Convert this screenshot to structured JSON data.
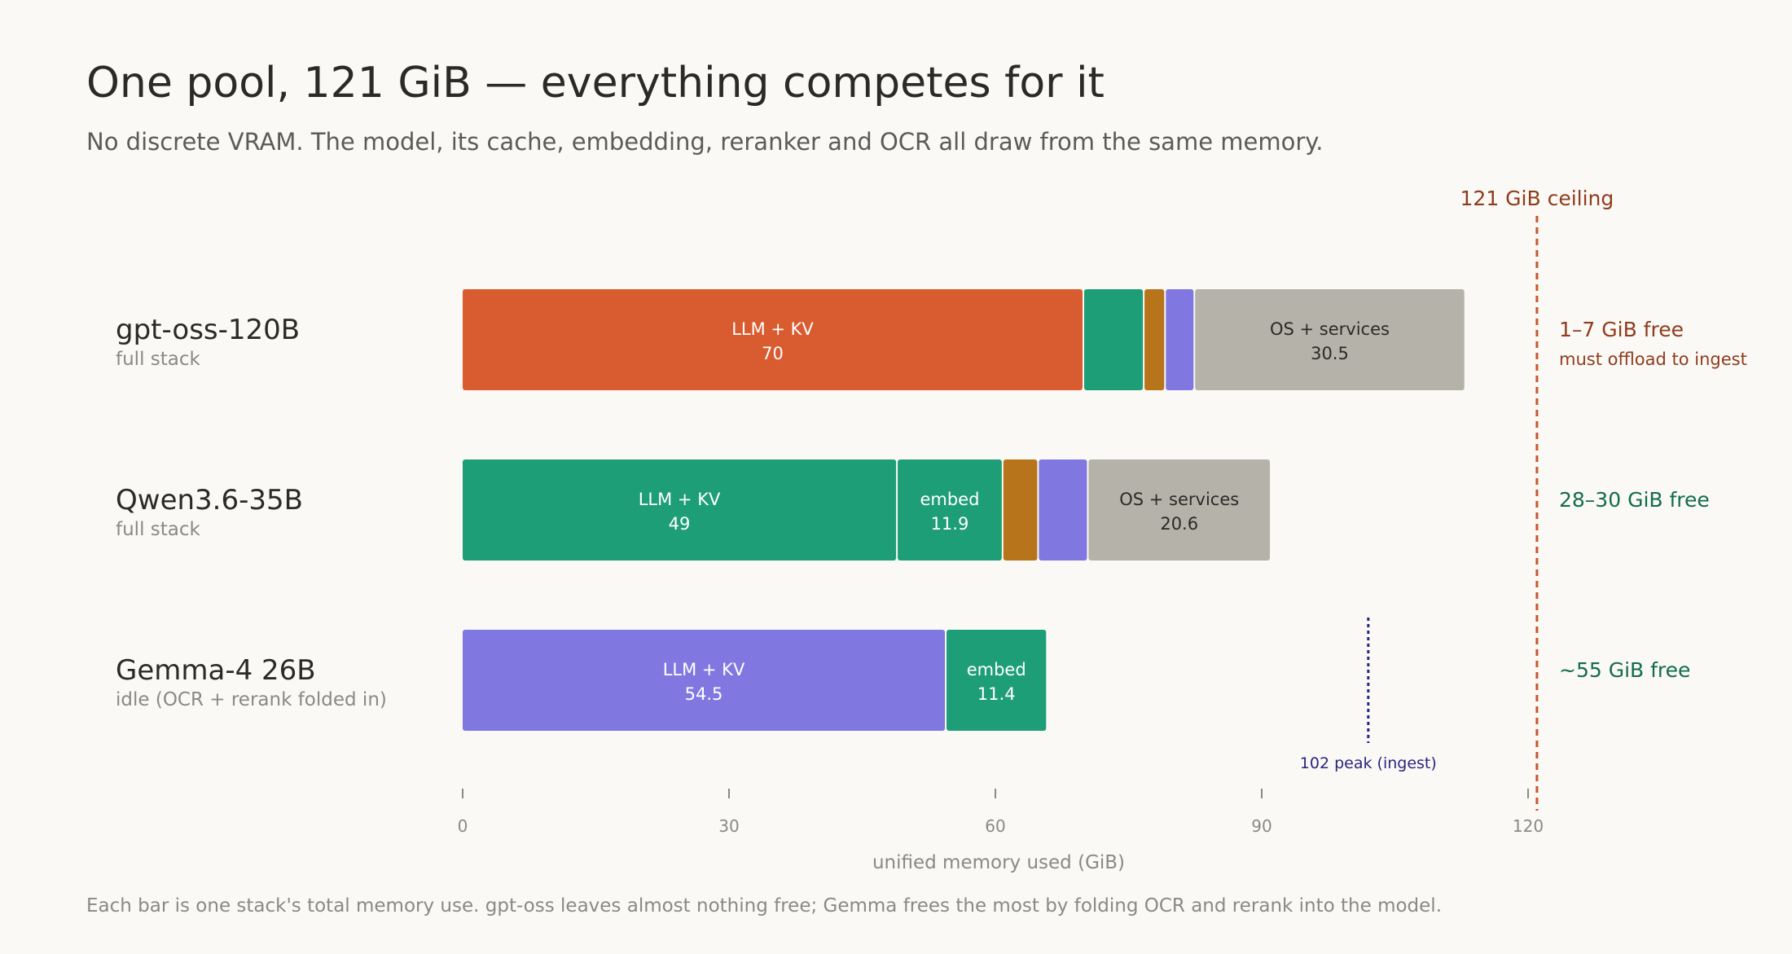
{
  "title": "One pool, 121 GiB — everything competes for it",
  "subtitle": "No discrete VRAM. The model, its cache, embedding, reranker and OCR all draw from the same memory.",
  "footer": "Each bar is one stack's total memory use. gpt-oss leaves almost nothing free; Gemma frees the most by folding OCR and rerank into the model.",
  "chart_data": {
    "type": "bar",
    "orientation": "horizontal",
    "stacked": true,
    "title": "One pool, 121 GiB — everything competes for it",
    "subtitle": "No discrete VRAM. The model, its cache, embedding, reranker and OCR all draw from the same memory.",
    "xlabel": "unified memory used (GiB)",
    "ylabel": "",
    "xlim": [
      0,
      120
    ],
    "xticks": [
      0,
      30,
      60,
      90,
      120
    ],
    "grid": false,
    "legend": "none",
    "categories": [
      {
        "name": "gpt-oss-120B",
        "sub": "full stack"
      },
      {
        "name": "Qwen3.6-35B",
        "sub": "full stack"
      },
      {
        "name": "Gemma-4 26B",
        "sub": "idle (OCR + rerank folded in)"
      }
    ],
    "stacks": [
      [
        {
          "label": "LLM + KV",
          "value": 70,
          "show_value": "70",
          "color": "#d95b30",
          "text_color": "#ffffff"
        },
        {
          "label": "",
          "value": 6.8,
          "color": "#1e9e76",
          "text_color": "#ffffff"
        },
        {
          "label": "",
          "value": 2.4,
          "color": "#b8741a",
          "text_color": "#ffffff"
        },
        {
          "label": "",
          "value": 3.3,
          "color": "#8078e0",
          "text_color": "#ffffff"
        },
        {
          "label": "OS + services",
          "value": 30.5,
          "show_value": "30.5",
          "color": "#b5b2aa",
          "text_color": "#2b2a27"
        }
      ],
      [
        {
          "label": "LLM + KV",
          "value": 49,
          "show_value": "49",
          "color": "#1e9e76",
          "text_color": "#ffffff"
        },
        {
          "label": "embed",
          "value": 11.9,
          "show_value": "11.9",
          "color": "#1e9e76",
          "text_color": "#ffffff"
        },
        {
          "label": "",
          "value": 4.0,
          "color": "#b8741a",
          "text_color": "#ffffff"
        },
        {
          "label": "",
          "value": 5.6,
          "color": "#8078e0",
          "text_color": "#ffffff"
        },
        {
          "label": "OS + services",
          "value": 20.6,
          "show_value": "20.6",
          "color": "#b5b2aa",
          "text_color": "#2b2a27"
        }
      ],
      [
        {
          "label": "LLM + KV",
          "value": 54.5,
          "show_value": "54.5",
          "color": "#8078e0",
          "text_color": "#ffffff"
        },
        {
          "label": "embed",
          "value": 11.4,
          "show_value": "11.4",
          "color": "#1e9e76",
          "text_color": "#ffffff"
        }
      ]
    ],
    "free_labels": [
      {
        "text": "1–7 GiB free",
        "note": "must offload to ingest",
        "color": "#8f3c1d"
      },
      {
        "text": "28–30 GiB free",
        "note": "",
        "color": "#146b50"
      },
      {
        "text": "~55 GiB free",
        "note": "",
        "color": "#146b50"
      }
    ],
    "ceiling": {
      "value": 121,
      "label": "121 GiB ceiling",
      "color": "#c4582e"
    },
    "peak_marker": {
      "value": 102,
      "label": "102 peak (ingest)",
      "color": "#2a2580",
      "row": 2
    }
  }
}
